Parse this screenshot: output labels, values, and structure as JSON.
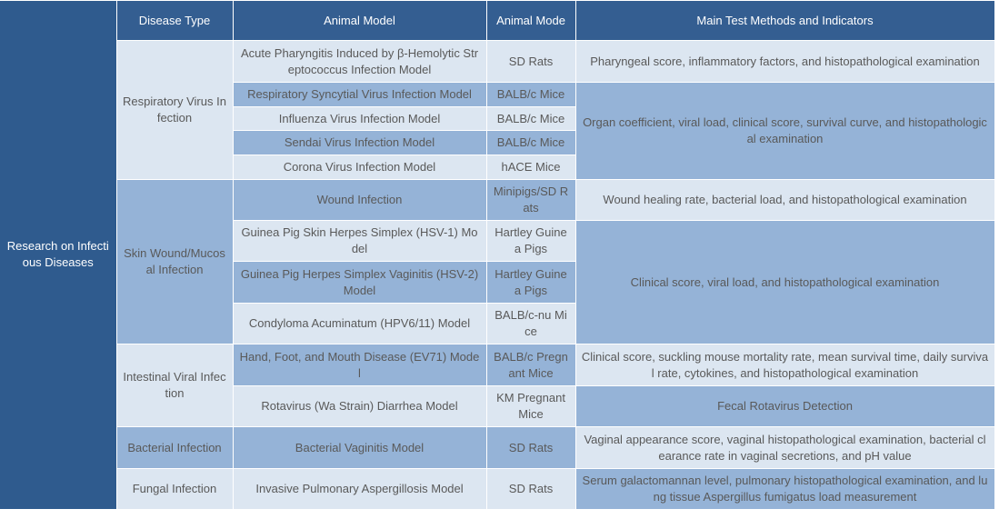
{
  "colors": {
    "header": "#345e91",
    "side": "#2f5b8e",
    "light": "#dce6f1",
    "medium": "#95b3d7",
    "text": "#595959"
  },
  "side_label": "Research on Infectious Diseases",
  "headers": [
    "Disease Type",
    "Animal Model",
    "Animal Mode",
    "Main Test Methods and Indicators"
  ],
  "rows": [
    [
      {
        "text": "Respiratory Virus Infection",
        "shade": "light",
        "rowspan": 5
      },
      {
        "text": "Acute Pharyngitis Induced by β-Hemolytic Streptococcus Infection Model",
        "shade": "light"
      },
      {
        "text": "SD Rats",
        "shade": "light"
      },
      {
        "text": "Pharyngeal score, inflammatory factors, and histopathological examination",
        "shade": "light"
      }
    ],
    [
      {
        "text": "Respiratory Syncytial Virus Infection Model",
        "shade": "medium"
      },
      {
        "text": "BALB/c Mice",
        "shade": "medium"
      },
      {
        "text": "Organ coefficient, viral load, clinical score, survival curve, and histopathological examination",
        "shade": "medium",
        "rowspan": 4
      }
    ],
    [
      {
        "text": "Influenza Virus Infection Model",
        "shade": "light"
      },
      {
        "text": "BALB/c Mice",
        "shade": "light"
      }
    ],
    [
      {
        "text": "Sendai Virus Infection Model",
        "shade": "medium"
      },
      {
        "text": "BALB/c Mice",
        "shade": "medium"
      }
    ],
    [
      {
        "text": "Corona Virus Infection Model",
        "shade": "light"
      },
      {
        "text": "hACE Mice",
        "shade": "light"
      }
    ],
    [
      {
        "text": "Skin Wound/Mucosal Infection",
        "shade": "medium",
        "rowspan": 4
      },
      {
        "text": "Wound Infection",
        "shade": "medium"
      },
      {
        "text": "Minipigs/SD Rats",
        "shade": "medium"
      },
      {
        "text": "Wound healing rate, bacterial load, and histopathological examination",
        "shade": "light"
      }
    ],
    [
      {
        "text": "Guinea Pig Skin Herpes Simplex (HSV-1) Model",
        "shade": "light"
      },
      {
        "text": "Hartley Guinea Pigs",
        "shade": "light"
      },
      {
        "text": "Clinical score, viral load, and histopathological examination",
        "shade": "medium",
        "rowspan": 3
      }
    ],
    [
      {
        "text": "Guinea Pig Herpes Simplex Vaginitis (HSV-2) Model",
        "shade": "medium"
      },
      {
        "text": "Hartley Guinea Pigs",
        "shade": "medium"
      }
    ],
    [
      {
        "text": "Condyloma Acuminatum (HPV6/11) Model",
        "shade": "light"
      },
      {
        "text": "BALB/c-nu Mice",
        "shade": "light"
      }
    ],
    [
      {
        "text": "Intestinal Viral Infection",
        "shade": "light",
        "rowspan": 2
      },
      {
        "text": "Hand, Foot, and Mouth Disease (EV71) Model",
        "shade": "medium"
      },
      {
        "text": "BALB/c Pregnant Mice",
        "shade": "medium"
      },
      {
        "text": "Clinical score, suckling mouse mortality rate, mean survival time, daily survival rate, cytokines, and histopathological examination",
        "shade": "light"
      }
    ],
    [
      {
        "text": "Rotavirus (Wa Strain) Diarrhea Model",
        "shade": "light"
      },
      {
        "text": "KM Pregnant Mice",
        "shade": "light"
      },
      {
        "text": "Fecal Rotavirus Detection",
        "shade": "medium"
      }
    ],
    [
      {
        "text": "Bacterial Infection",
        "shade": "medium"
      },
      {
        "text": "Bacterial Vaginitis Model",
        "shade": "medium"
      },
      {
        "text": "SD Rats",
        "shade": "medium"
      },
      {
        "text": "Vaginal appearance score, vaginal histopathological examination, bacterial clearance rate in vaginal secretions, and pH value",
        "shade": "light"
      }
    ],
    [
      {
        "text": "Fungal Infection",
        "shade": "light"
      },
      {
        "text": "Invasive Pulmonary Aspergillosis Model",
        "shade": "light"
      },
      {
        "text": "SD Rats",
        "shade": "light"
      },
      {
        "text": "Serum galactomannan level, pulmonary histopathological examination, and lung tissue Aspergillus fumigatus load measurement",
        "shade": "medium"
      }
    ]
  ]
}
